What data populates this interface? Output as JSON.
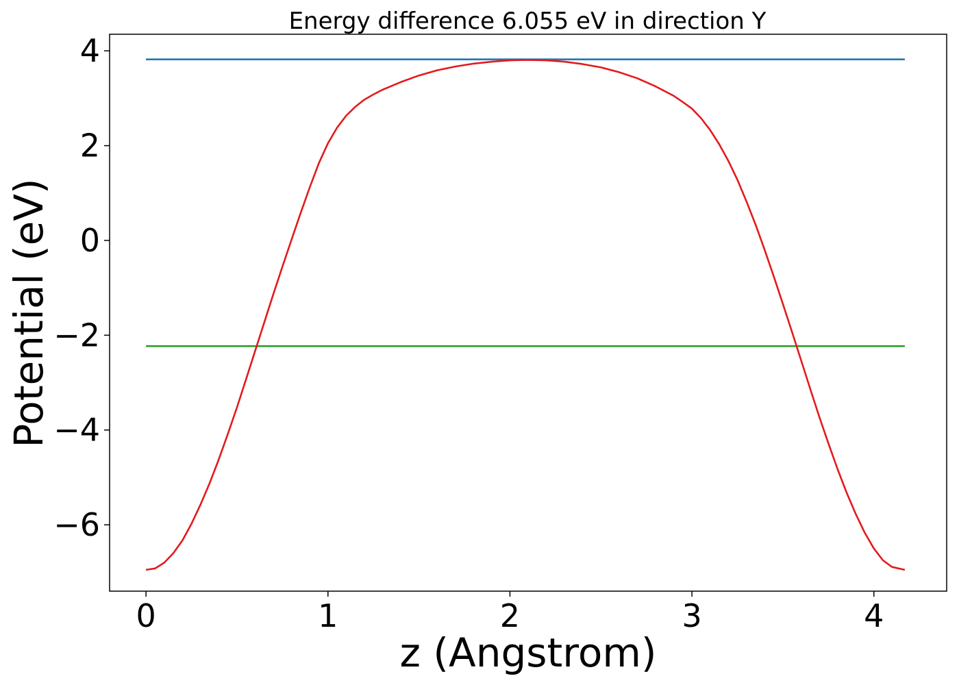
{
  "chart_data": {
    "type": "line",
    "title": "Energy difference 6.055 eV in direction Y",
    "xlabel": "z (Angstrom)",
    "ylabel": "Potential (eV)",
    "xlim": [
      -0.2,
      4.4
    ],
    "ylim": [
      -7.4,
      4.35
    ],
    "xticks": [
      0,
      1,
      2,
      3,
      4
    ],
    "xtick_labels": [
      "0",
      "1",
      "2",
      "3",
      "4"
    ],
    "yticks": [
      4,
      2,
      0,
      -2,
      -4,
      -6
    ],
    "ytick_labels": [
      "4",
      "2",
      "0",
      "−2",
      "−4",
      "−6"
    ],
    "grid": false,
    "legend": "none",
    "series": [
      {
        "color": "#1f77b4",
        "x": [
          0,
          4.17
        ],
        "y": [
          3.82,
          3.82
        ]
      },
      {
        "color": "#2ca02c",
        "x": [
          0,
          4.17
        ],
        "y": [
          -2.23,
          -2.23
        ]
      },
      {
        "color": "#e31a1c",
        "x": [
          0.0,
          0.05,
          0.1,
          0.15,
          0.2,
          0.25,
          0.3,
          0.35,
          0.4,
          0.45,
          0.5,
          0.55,
          0.6,
          0.65,
          0.7,
          0.75,
          0.8,
          0.85,
          0.9,
          0.95,
          1.0,
          1.05,
          1.1,
          1.15,
          1.2,
          1.25,
          1.3,
          1.35,
          1.4,
          1.5,
          1.6,
          1.7,
          1.8,
          1.9,
          2.0,
          2.1,
          2.2,
          2.3,
          2.4,
          2.5,
          2.6,
          2.7,
          2.8,
          2.9,
          2.95,
          3.0,
          3.05,
          3.1,
          3.15,
          3.2,
          3.25,
          3.3,
          3.35,
          3.4,
          3.45,
          3.5,
          3.55,
          3.6,
          3.65,
          3.7,
          3.75,
          3.8,
          3.85,
          3.9,
          3.95,
          4.0,
          4.05,
          4.1,
          4.17
        ],
        "y": [
          -6.95,
          -6.92,
          -6.8,
          -6.6,
          -6.33,
          -5.98,
          -5.57,
          -5.12,
          -4.62,
          -4.08,
          -3.52,
          -2.93,
          -2.33,
          -1.73,
          -1.13,
          -0.55,
          0.02,
          0.58,
          1.12,
          1.63,
          2.05,
          2.38,
          2.63,
          2.82,
          2.97,
          3.08,
          3.18,
          3.26,
          3.34,
          3.48,
          3.59,
          3.67,
          3.73,
          3.77,
          3.8,
          3.81,
          3.8,
          3.77,
          3.72,
          3.65,
          3.55,
          3.42,
          3.25,
          3.05,
          2.92,
          2.78,
          2.58,
          2.33,
          2.03,
          1.68,
          1.28,
          0.82,
          0.33,
          -0.2,
          -0.76,
          -1.34,
          -1.93,
          -2.53,
          -3.13,
          -3.72,
          -4.28,
          -4.82,
          -5.32,
          -5.77,
          -6.17,
          -6.5,
          -6.75,
          -6.89,
          -6.95
        ]
      }
    ]
  }
}
